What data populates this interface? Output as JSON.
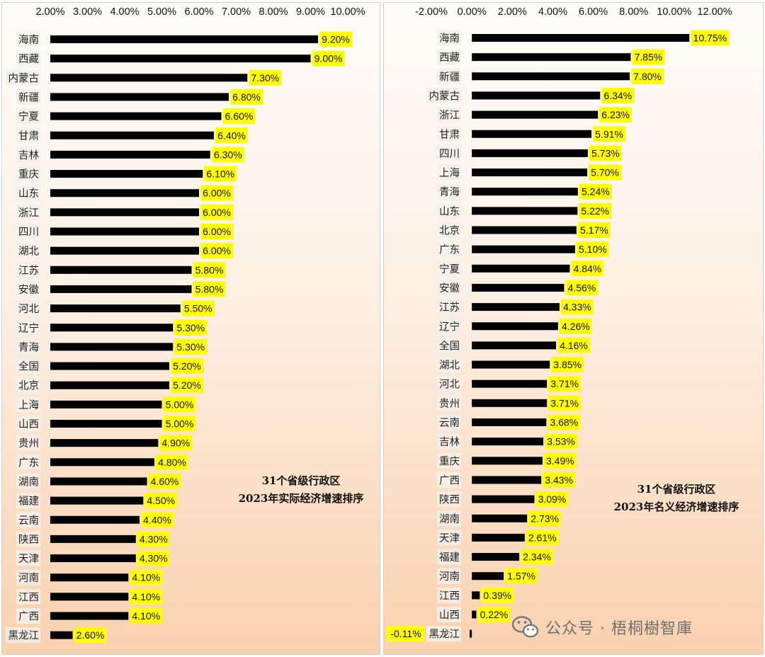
{
  "charts": [
    {
      "type": "bar",
      "orientation": "horizontal",
      "title_lines": [
        "31个省级行政区",
        "2023年实际经济增速排序"
      ],
      "xlim": [
        0.02,
        0.1
      ],
      "xticks": [
        "2.00%",
        "3.00%",
        "4.00%",
        "5.00%",
        "6.00%",
        "7.00%",
        "8.00%",
        "9.00%",
        "10.00%"
      ],
      "xtick_values": [
        0.02,
        0.03,
        0.04,
        0.05,
        0.06,
        0.07,
        0.08,
        0.09,
        0.1
      ],
      "axis_position": "top",
      "grid": false,
      "bar_color": "#000000",
      "label_bg": "#ffff00",
      "categories": [
        "海南",
        "西藏",
        "内蒙古",
        "新疆",
        "宁夏",
        "甘肃",
        "吉林",
        "重庆",
        "山东",
        "浙江",
        "四川",
        "湖北",
        "江苏",
        "安徽",
        "河北",
        "辽宁",
        "青海",
        "全国",
        "北京",
        "上海",
        "山西",
        "贵州",
        "广东",
        "湖南",
        "福建",
        "云南",
        "陕西",
        "天津",
        "河南",
        "江西",
        "广西",
        "黑龙江"
      ],
      "values": [
        0.092,
        0.09,
        0.073,
        0.068,
        0.066,
        0.064,
        0.063,
        0.061,
        0.06,
        0.06,
        0.06,
        0.06,
        0.058,
        0.058,
        0.055,
        0.053,
        0.053,
        0.052,
        0.052,
        0.05,
        0.05,
        0.049,
        0.048,
        0.046,
        0.045,
        0.044,
        0.043,
        0.043,
        0.041,
        0.041,
        0.041,
        0.026
      ],
      "labels": [
        "9.20%",
        "9.00%",
        "7.30%",
        "6.80%",
        "6.60%",
        "6.40%",
        "6.30%",
        "6.10%",
        "6.00%",
        "6.00%",
        "6.00%",
        "6.00%",
        "5.80%",
        "5.80%",
        "5.50%",
        "5.30%",
        "5.30%",
        "5.20%",
        "5.20%",
        "5.00%",
        "5.00%",
        "4.90%",
        "4.80%",
        "4.60%",
        "4.50%",
        "4.40%",
        "4.30%",
        "4.30%",
        "4.10%",
        "4.10%",
        "4.10%",
        "2.60%"
      ]
    },
    {
      "type": "bar",
      "orientation": "horizontal",
      "title_lines": [
        "31个省级行政区",
        "2023年名义经济增速排序"
      ],
      "xlim": [
        -0.02,
        0.12
      ],
      "xticks": [
        "-2.00%",
        "0.00%",
        "2.00%",
        "4.00%",
        "6.00%",
        "8.00%",
        "10.00%",
        "12.00%"
      ],
      "xtick_values": [
        -0.02,
        0,
        0.02,
        0.04,
        0.06,
        0.08,
        0.1,
        0.12
      ],
      "axis_position": "top",
      "grid": false,
      "bar_color": "#000000",
      "label_bg": "#ffff00",
      "categories": [
        "海南",
        "西藏",
        "新疆",
        "内蒙古",
        "浙江",
        "甘肃",
        "四川",
        "上海",
        "青海",
        "山东",
        "北京",
        "广东",
        "宁夏",
        "安徽",
        "江苏",
        "辽宁",
        "全国",
        "湖北",
        "河北",
        "贵州",
        "云南",
        "吉林",
        "重庆",
        "广西",
        "陕西",
        "湖南",
        "天津",
        "福建",
        "河南",
        "江西",
        "山西",
        "黑龙江"
      ],
      "values": [
        0.1075,
        0.0785,
        0.078,
        0.0634,
        0.0623,
        0.0591,
        0.0573,
        0.057,
        0.0524,
        0.0522,
        0.0517,
        0.051,
        0.0484,
        0.0456,
        0.0433,
        0.0426,
        0.0416,
        0.0385,
        0.0371,
        0.0371,
        0.0368,
        0.0353,
        0.0349,
        0.0343,
        0.0309,
        0.0273,
        0.0261,
        0.0234,
        0.0157,
        0.0039,
        0.0022,
        -0.0011
      ],
      "labels": [
        "10.75%",
        "7.85%",
        "7.80%",
        "6.34%",
        "6.23%",
        "5.91%",
        "5.73%",
        "5.70%",
        "5.24%",
        "5.22%",
        "5.17%",
        "5.10%",
        "4.84%",
        "4.56%",
        "4.33%",
        "4.26%",
        "4.16%",
        "3.85%",
        "3.71%",
        "3.71%",
        "3.68%",
        "3.53%",
        "3.49%",
        "3.43%",
        "3.09%",
        "2.73%",
        "2.61%",
        "2.34%",
        "1.57%",
        "0.39%",
        "0.22%",
        "-0.11%"
      ]
    }
  ],
  "watermark": {
    "text": "公众号 · 梧桐樹智庫",
    "icon": "wechat-icon"
  }
}
